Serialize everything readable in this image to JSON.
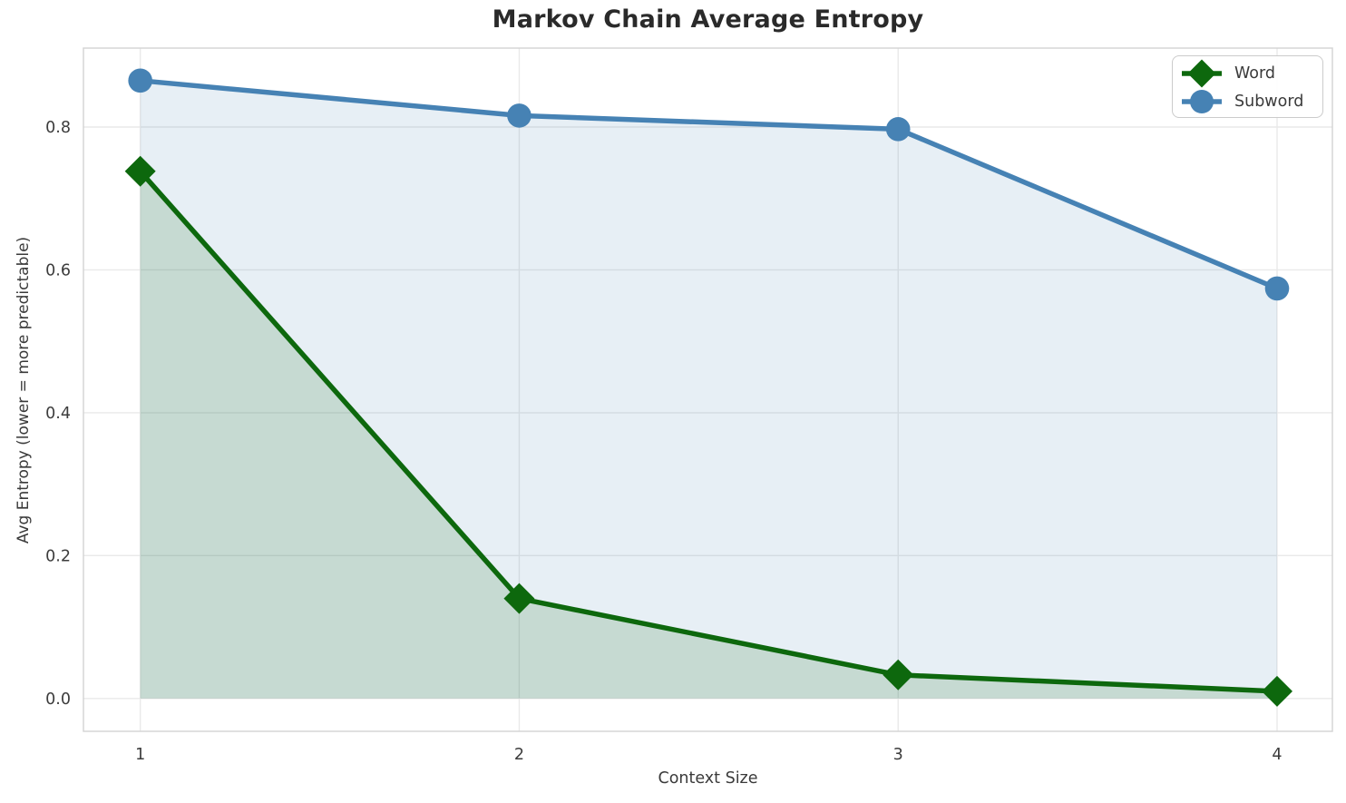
{
  "chart": {
    "title": "Markov Chain Average Entropy",
    "xlabel": "Context Size",
    "ylabel": "Avg Entropy (lower = more predictable)"
  },
  "legend": {
    "position": "upper right",
    "items": [
      {
        "label": "Word",
        "marker": "diamond",
        "color": "#0d680d"
      },
      {
        "label": "Subword",
        "marker": "circle",
        "color": "#4682b4"
      }
    ]
  },
  "chart_data": {
    "type": "line",
    "title": "Markov Chain Average Entropy",
    "xlabel": "Context Size",
    "ylabel": "Avg Entropy (lower = more predictable)",
    "x": [
      1,
      2,
      3,
      4
    ],
    "series": [
      {
        "name": "Word",
        "marker": "diamond",
        "color": "#0d680d",
        "fill_color": "rgba(13,104,13,0.15)",
        "values": [
          0.738,
          0.14,
          0.033,
          0.01
        ]
      },
      {
        "name": "Subword",
        "marker": "circle",
        "color": "#4682b4",
        "fill_color": "rgba(70,130,180,0.13)",
        "values": [
          0.865,
          0.816,
          0.797,
          0.574
        ]
      }
    ],
    "fill_baseline": 0,
    "xlim": [
      0.85,
      4.146
    ],
    "ylim": [
      -0.046,
      0.9105
    ],
    "xticks": {
      "values": [
        1,
        2,
        3,
        4
      ],
      "labels": [
        "1",
        "2",
        "3",
        "4"
      ]
    },
    "yticks": {
      "values": [
        0.0,
        0.2,
        0.4,
        0.6,
        0.8
      ],
      "labels": [
        "0.0",
        "0.2",
        "0.4",
        "0.6",
        "0.8"
      ]
    },
    "grid": true,
    "grid_color": "#e9e9e9",
    "spine_color": "#d3d3d3",
    "tick_label_color": "#3c3c3c",
    "legend_position": "upper right"
  }
}
